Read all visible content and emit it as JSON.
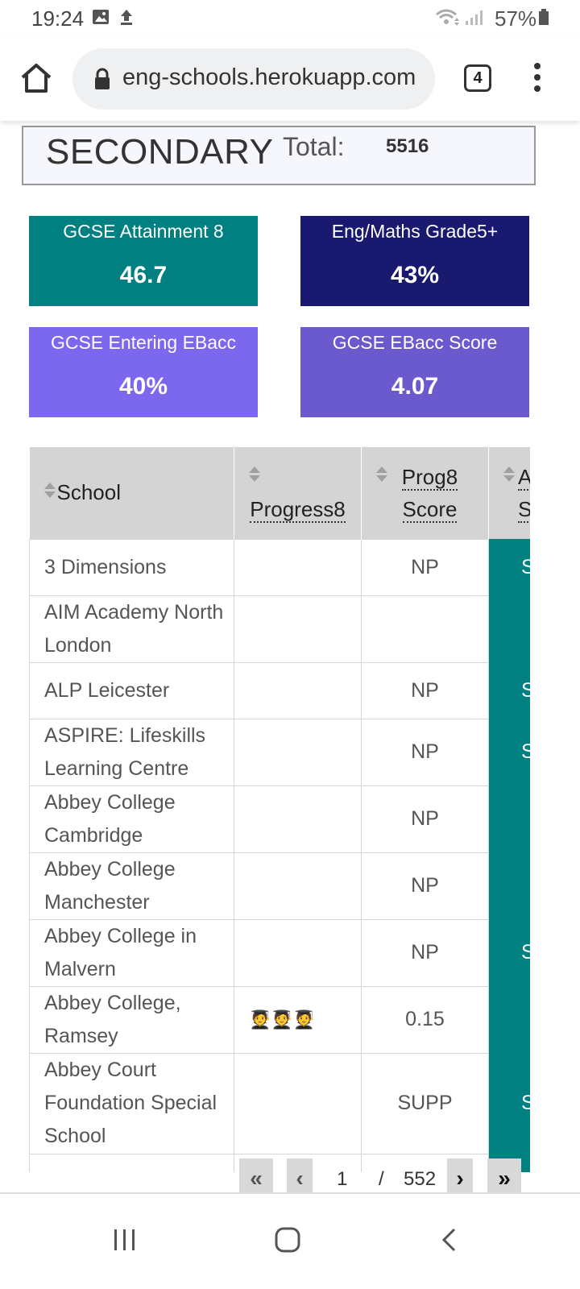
{
  "status_bar": {
    "time": "19:24",
    "battery": "57%"
  },
  "browser": {
    "url": "eng-schools.herokuapp.com",
    "tab_count": "4"
  },
  "header": {
    "phase": "SECONDARY",
    "total_label": "Total:",
    "total_value": "5516"
  },
  "stats": [
    {
      "label": "GCSE Attainment 8",
      "value": "46.7",
      "color": "#008080"
    },
    {
      "label": "Eng/Maths Grade5+",
      "value": "43%",
      "color": "#191970"
    },
    {
      "label": "GCSE Entering EBacc",
      "value": "40%",
      "color": "#7B68EE"
    },
    {
      "label": "GCSE EBacc Score",
      "value": "4.07",
      "color": "#6A5ACD"
    }
  ],
  "table": {
    "headers": {
      "school": "School",
      "progress8": "Progress8",
      "prog8_score_1": "Prog8",
      "prog8_score_2": "Score",
      "col4_top": "A",
      "col4_bottom": "S"
    },
    "rows": [
      {
        "school": "3 Dimensions",
        "progress8": "",
        "prog8_score": "NP",
        "col4": "S"
      },
      {
        "school": "AIM Academy North London",
        "progress8": "",
        "prog8_score": "",
        "col4": ""
      },
      {
        "school": "ALP Leicester",
        "progress8": "",
        "prog8_score": "NP",
        "col4": "S"
      },
      {
        "school": "ASPIRE: Lifeskills Learning Centre",
        "progress8": "",
        "prog8_score": "NP",
        "col4": "S"
      },
      {
        "school": "Abbey College Cambridge",
        "progress8": "",
        "prog8_score": "NP",
        "col4": ""
      },
      {
        "school": "Abbey College Manchester",
        "progress8": "",
        "prog8_score": "NP",
        "col4": ""
      },
      {
        "school": "Abbey College in Malvern",
        "progress8": "",
        "prog8_score": "NP",
        "col4": "S"
      },
      {
        "school": "Abbey College, Ramsey",
        "progress8": "🧑‍🎓🧑‍🎓🧑‍🎓",
        "prog8_score": "0.15",
        "col4": ""
      },
      {
        "school": "Abbey Court Foundation Special School",
        "progress8": "",
        "prog8_score": "SUPP",
        "col4": "S"
      }
    ]
  },
  "pagination": {
    "first": "«",
    "prev": "‹",
    "current": "1",
    "separator": "/",
    "total_pages": "552",
    "next": "›",
    "last": "»"
  }
}
